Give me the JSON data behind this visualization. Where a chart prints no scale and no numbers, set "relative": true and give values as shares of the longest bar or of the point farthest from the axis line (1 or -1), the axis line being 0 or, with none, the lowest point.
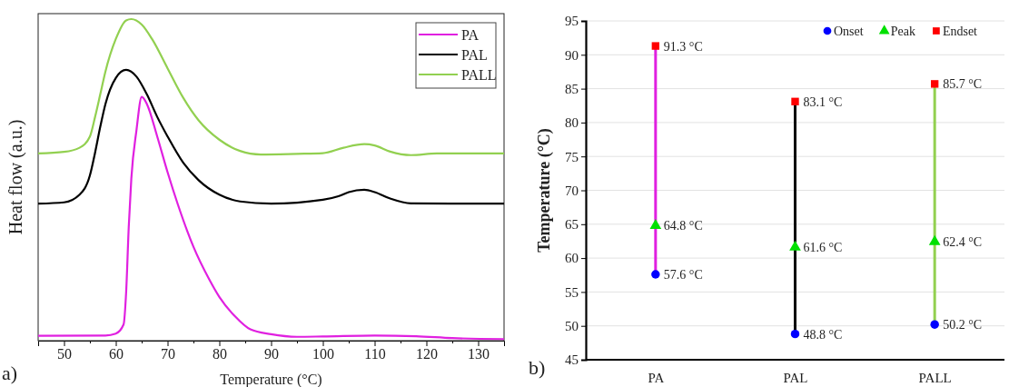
{
  "chart_data": [
    {
      "type": "line",
      "relative": true,
      "xlabel": "Temperature (°C)",
      "ylabel": "Heat flow (a.u.)",
      "xlim": [
        45,
        135
      ],
      "xticks": [
        50,
        {
          "value": 55,
          "label": null
        },
        60,
        {
          "value": 65,
          "label": null
        },
        70,
        {
          "value": 75,
          "label": null
        },
        80,
        {
          "value": 85,
          "label": null
        },
        90,
        {
          "value": 95,
          "label": null
        },
        100,
        {
          "value": 105,
          "label": null
        },
        110,
        {
          "value": 115,
          "label": null
        },
        120,
        {
          "value": 125,
          "label": null
        },
        130
      ],
      "grid": false,
      "legend": "top right",
      "tick_labels": "x",
      "annotations": [
        "a)"
      ],
      "series": [
        {
          "name": "PA",
          "color": "#e020e0",
          "x": [
            45,
            58,
            60,
            61.5,
            62,
            62.5,
            63,
            64,
            65,
            66,
            68,
            70,
            72,
            75,
            78,
            80,
            83,
            86,
            90,
            95,
            100,
            110,
            118,
            125,
            135
          ],
          "values": [
            0.015,
            0.016,
            0.022,
            0.05,
            0.151,
            0.353,
            0.504,
            0.655,
            0.758,
            0.736,
            0.635,
            0.524,
            0.423,
            0.292,
            0.192,
            0.136,
            0.076,
            0.035,
            0.02,
            0.012,
            0.013,
            0.016,
            0.014,
            0.008,
            0.005
          ]
        },
        {
          "name": "PAL",
          "color": "#000000",
          "x": [
            45,
            50,
            53,
            55,
            56,
            57,
            58,
            60,
            62,
            64,
            66,
            68,
            70,
            73,
            76,
            80,
            84,
            90,
            100,
            103,
            105,
            108,
            110,
            113,
            117,
            125,
            135
          ],
          "values": [
            0.426,
            0.43,
            0.454,
            0.514,
            0.585,
            0.665,
            0.736,
            0.817,
            0.842,
            0.821,
            0.766,
            0.696,
            0.635,
            0.554,
            0.499,
            0.454,
            0.433,
            0.426,
            0.438,
            0.449,
            0.462,
            0.469,
            0.462,
            0.442,
            0.427,
            0.426,
            0.426
          ]
        },
        {
          "name": "PALL",
          "color": "#92d050",
          "x": [
            45,
            50,
            53,
            55,
            56,
            57,
            58,
            60,
            62,
            63,
            65,
            67,
            70,
            73,
            76,
            80,
            84,
            88,
            95,
            100,
            104,
            108,
            110,
            113,
            117,
            122,
            135
          ],
          "values": [
            0.582,
            0.587,
            0.6,
            0.635,
            0.696,
            0.766,
            0.837,
            0.938,
            0.996,
            1,
            0.983,
            0.938,
            0.847,
            0.756,
            0.685,
            0.625,
            0.59,
            0.579,
            0.581,
            0.583,
            0.6,
            0.611,
            0.607,
            0.588,
            0.577,
            0.582,
            0.582
          ]
        }
      ]
    },
    {
      "type": "scatter",
      "categories": [
        "PA",
        "PAL",
        "PALL"
      ],
      "ylabel": "Temperature (°C)",
      "ylim": [
        45,
        95
      ],
      "yticks": [
        45,
        50,
        55,
        60,
        65,
        70,
        75,
        80,
        85,
        90,
        95
      ],
      "grid": "y",
      "legend": "top right",
      "annotations": [
        "b)"
      ],
      "series": [
        {
          "type": "bar",
          "base": [
            57.6,
            48.8,
            50.2
          ],
          "values": [
            33.7,
            34.3,
            35.5
          ],
          "colors": [
            "#e020e0",
            "#000000",
            "#92d050"
          ]
        },
        {
          "name": "Onset",
          "color": "#0000ff",
          "marker": "circle",
          "values": [
            57.6,
            48.8,
            50.2
          ],
          "value_labels": [
            "57.6 °C",
            "48.8 °C",
            "50.2 °C"
          ]
        },
        {
          "name": "Peak",
          "color": "#00e000",
          "marker": "triangle",
          "values": [
            64.8,
            61.6,
            62.4
          ],
          "value_labels": [
            "64.8 °C",
            "61.6 °C",
            "62.4 °C"
          ]
        },
        {
          "name": "Endset",
          "color": "#ff0000",
          "marker": "square",
          "values": [
            91.3,
            83.1,
            85.7
          ],
          "value_labels": [
            "91.3 °C",
            "83.1 °C",
            "85.7 °C"
          ]
        }
      ]
    }
  ]
}
